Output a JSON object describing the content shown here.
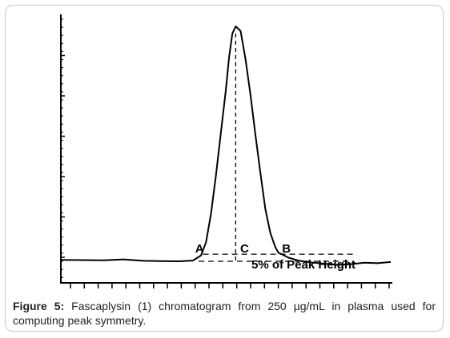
{
  "chart_data": {
    "type": "line",
    "title": "",
    "xlabel": "",
    "ylabel": "",
    "x_tick_count": 24,
    "y_tick_count": 6,
    "series": [
      {
        "values_description": "chromatogram trace",
        "x": [
          0,
          7,
          13,
          19,
          25,
          30,
          36,
          40,
          42.5,
          44,
          45.5,
          47,
          48.5,
          50,
          51,
          52,
          53,
          54.5,
          56,
          57.5,
          59,
          60.5,
          62,
          63.5,
          65,
          66,
          67,
          69,
          72,
          76,
          80,
          84,
          88,
          92,
          96,
          100
        ],
        "y": [
          0.6,
          0.5,
          0.4,
          0.8,
          0.2,
          0.1,
          0.0,
          0.3,
          2.5,
          8,
          20,
          36,
          54,
          72,
          86,
          96,
          99,
          97,
          85,
          70,
          53,
          37,
          22,
          12,
          6,
          3.5,
          3.0,
          1.5,
          0.3,
          -0.5,
          -1.0,
          -1.5,
          -1.2,
          -0.6,
          -0.8,
          -0.3
        ]
      }
    ],
    "annotations": {
      "point_a": "A",
      "point_b": "B",
      "point_c": "C",
      "threshold_label": "5% of Peak Height"
    }
  },
  "caption": {
    "figure_label": "Figure 5:",
    "text": " Fascaplysin (1) chromatogram from 250 µg/mL in plasma used for computing peak symmetry."
  }
}
